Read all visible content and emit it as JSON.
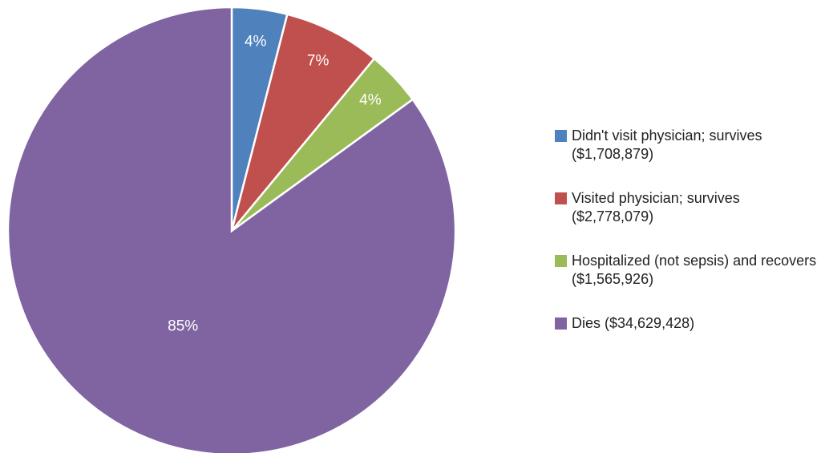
{
  "chart_data": {
    "type": "pie",
    "categories": [
      "Didn't visit physician; survives ($1,708,879)",
      "Visited physician; survives ($2,778,079)",
      "Hospitalized (not sepsis) and recovers ($1,565,926)",
      "Dies ($34,629,428)"
    ],
    "values": [
      4,
      7,
      4,
      85
    ],
    "value_labels": [
      "4%",
      "7%",
      "4%",
      "85%"
    ],
    "colors": [
      "#4f81bd",
      "#c0504d",
      "#9bbb59",
      "#8064a2"
    ],
    "legend": "right"
  }
}
